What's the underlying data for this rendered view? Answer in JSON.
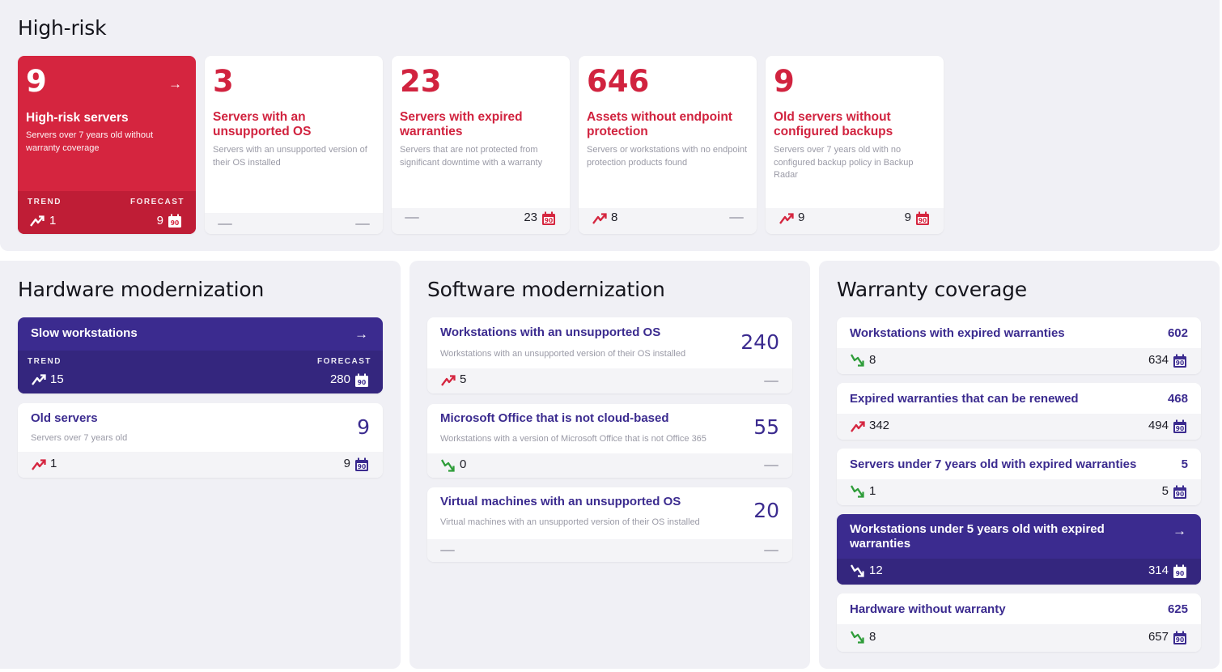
{
  "colors": {
    "risk_red": "#d5253f",
    "brand_purple": "#3b2b8f",
    "trend_green": "#2f9d3a"
  },
  "high_risk": {
    "title": "High-risk",
    "cards": [
      {
        "value": "9",
        "title": "High-risk servers",
        "description": "Servers over 7 years old without warranty coverage",
        "trend_label": "TREND",
        "forecast_label": "FORECAST",
        "trend": "1",
        "trend_icon": "trend-up-icon",
        "forecast": "9"
      },
      {
        "value": "3",
        "title": "Servers with an unsupported OS",
        "description": "Servers with an unsupported version of their OS installed",
        "trend": "",
        "forecast": ""
      },
      {
        "value": "23",
        "title": "Servers with expired warranties",
        "description": "Servers that are not protected from significant downtime with a warranty",
        "trend": "",
        "forecast": "23"
      },
      {
        "value": "646",
        "title": "Assets without endpoint protection",
        "description": "Servers or workstations with no endpoint protection products found",
        "trend": "8",
        "trend_icon": "trend-up-icon",
        "forecast": ""
      },
      {
        "value": "9",
        "title": "Old servers without configured backups",
        "description": "Servers over 7 years old with no configured backup policy in Backup Radar",
        "trend": "9",
        "trend_icon": "trend-up-icon",
        "forecast": "9"
      }
    ]
  },
  "hardware": {
    "title": "Hardware modernization",
    "cards": [
      {
        "title": "Slow workstations",
        "trend_label": "TREND",
        "forecast_label": "FORECAST",
        "trend": "15",
        "trend_icon": "trend-up-icon",
        "forecast": "280"
      },
      {
        "title": "Old servers",
        "description": "Servers over 7 years old",
        "value": "9",
        "trend": "1",
        "trend_icon": "trend-up-icon",
        "forecast": "9"
      }
    ]
  },
  "software": {
    "title": "Software modernization",
    "cards": [
      {
        "title": "Workstations with an unsupported OS",
        "description": "Workstations with an unsupported version of their OS installed",
        "value": "240",
        "trend": "5",
        "trend_icon": "trend-up-icon",
        "forecast": ""
      },
      {
        "title": "Microsoft Office that is not cloud-based",
        "description": "Workstations with a version of Microsoft Office that is not Office 365",
        "value": "55",
        "trend": "0",
        "trend_icon": "trend-down-icon",
        "forecast": ""
      },
      {
        "title": "Virtual machines with an unsupported OS",
        "description": "Virtual machines with an unsupported version of their OS installed",
        "value": "20",
        "trend": "",
        "forecast": ""
      }
    ]
  },
  "warranty": {
    "title": "Warranty coverage",
    "cards": [
      {
        "title": "Workstations with expired warranties",
        "value": "602",
        "trend": "8",
        "trend_icon": "trend-down-icon",
        "forecast": "634"
      },
      {
        "title": "Expired warranties that can be renewed",
        "value": "468",
        "trend": "342",
        "trend_icon": "trend-up-icon",
        "forecast": "494"
      },
      {
        "title": "Servers under 7 years old with expired warranties",
        "value": "5",
        "trend": "1",
        "trend_icon": "trend-down-icon",
        "forecast": "5"
      },
      {
        "title": "Workstations under 5 years old with expired warranties",
        "trend": "12",
        "trend_icon": "trend-down-icon",
        "forecast": "314"
      },
      {
        "title": "Hardware without warranty",
        "value": "625",
        "trend": "8",
        "trend_icon": "trend-down-icon",
        "forecast": "657"
      }
    ]
  },
  "icons": {
    "forecast": "calendar-90-icon",
    "navigate": "arrow-right-icon",
    "empty": "dash-placeholder"
  }
}
